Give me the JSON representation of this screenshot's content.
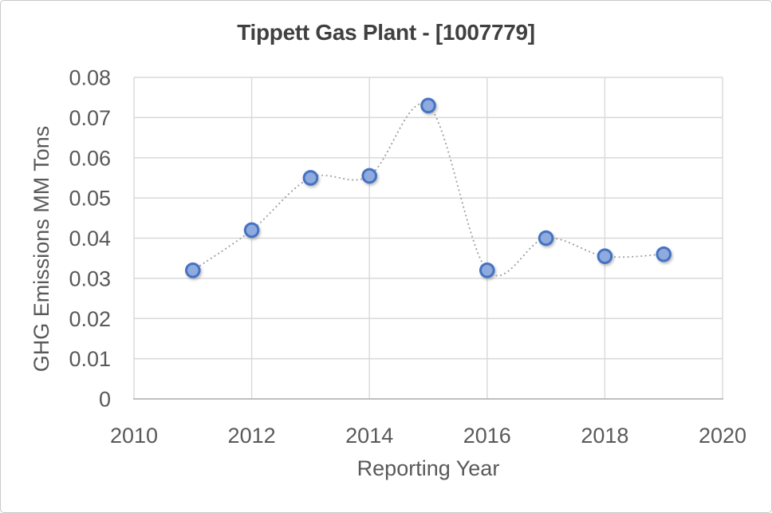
{
  "window": {
    "background": "#ffffff",
    "border_color": "#c9c9c9"
  },
  "chart_data": {
    "type": "line",
    "title": "Tippett Gas Plant - [1007779]",
    "xlabel": "Reporting Year",
    "ylabel": "GHG Emissions MM Tons",
    "x": [
      2011,
      2012,
      2013,
      2014,
      2015,
      2016,
      2017,
      2018,
      2019
    ],
    "values": [
      0.032,
      0.042,
      0.055,
      0.0555,
      0.073,
      0.032,
      0.04,
      0.0355,
      0.036
    ],
    "xlim": [
      2010,
      2020
    ],
    "ylim": [
      0,
      0.08
    ],
    "x_ticks": [
      2010,
      2012,
      2014,
      2016,
      2018,
      2020
    ],
    "y_ticks": [
      0,
      0.01,
      0.02,
      0.03,
      0.04,
      0.05,
      0.06,
      0.07,
      0.08
    ],
    "grid": true,
    "legend": "none",
    "line": {
      "style": "dotted",
      "smooth": true,
      "color": "#a3a3a3"
    },
    "marker": {
      "shape": "circle",
      "fill": "#8faadc",
      "stroke": "#4472c4"
    },
    "colors": {
      "gridline": "#d9d9d9",
      "axis_line": "#bfbfbf",
      "tick_label": "#595959",
      "axis_title": "#595959",
      "title": "#404040"
    }
  }
}
